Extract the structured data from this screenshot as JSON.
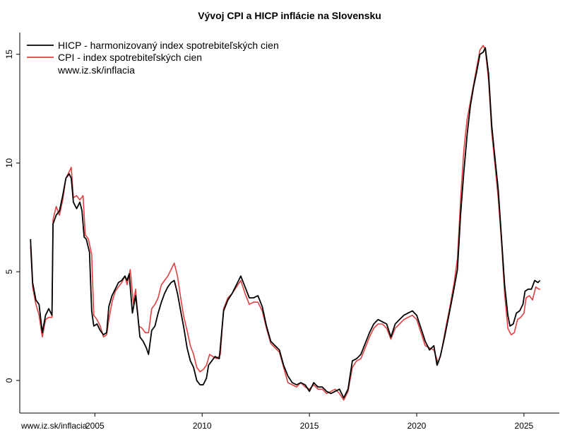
{
  "chart_data": {
    "type": "line",
    "title": "Vývoj CPI a HICP inflácie na Slovensku",
    "xlabel": "",
    "ylabel": "",
    "xlim": [
      2001.5,
      2026.65
    ],
    "ylim": [
      -1.5,
      16.0
    ],
    "x_ticks": [
      2005,
      2010,
      2015,
      2020,
      2025
    ],
    "y_ticks": [
      0,
      5,
      10,
      15
    ],
    "legend_position": "top-left",
    "legend_note": "www.iz.sk/inflacia",
    "watermark": "www.iz.sk/inflacia",
    "series": [
      {
        "name": "HICP - harmonizovaný index spotrebiteľských cien",
        "color": "#000000",
        "points": [
          [
            2002.0,
            6.5
          ],
          [
            2002.1,
            4.5
          ],
          [
            2002.25,
            3.7
          ],
          [
            2002.4,
            3.5
          ],
          [
            2002.55,
            2.2
          ],
          [
            2002.7,
            3.0
          ],
          [
            2002.85,
            3.3
          ],
          [
            2003.0,
            3.0
          ],
          [
            2003.05,
            7.2
          ],
          [
            2003.2,
            7.6
          ],
          [
            2003.35,
            7.8
          ],
          [
            2003.5,
            8.5
          ],
          [
            2003.65,
            9.3
          ],
          [
            2003.8,
            9.5
          ],
          [
            2003.9,
            9.3
          ],
          [
            2004.0,
            8.2
          ],
          [
            2004.15,
            7.9
          ],
          [
            2004.3,
            8.2
          ],
          [
            2004.4,
            7.8
          ],
          [
            2004.5,
            6.6
          ],
          [
            2004.6,
            6.5
          ],
          [
            2004.75,
            5.9
          ],
          [
            2004.85,
            3.2
          ],
          [
            2004.95,
            2.5
          ],
          [
            2005.1,
            2.6
          ],
          [
            2005.25,
            2.3
          ],
          [
            2005.4,
            2.1
          ],
          [
            2005.55,
            2.2
          ],
          [
            2005.65,
            3.4
          ],
          [
            2005.8,
            3.9
          ],
          [
            2005.95,
            4.2
          ],
          [
            2006.1,
            4.5
          ],
          [
            2006.25,
            4.6
          ],
          [
            2006.4,
            4.8
          ],
          [
            2006.5,
            4.6
          ],
          [
            2006.6,
            4.9
          ],
          [
            2006.75,
            3.1
          ],
          [
            2006.9,
            3.9
          ],
          [
            2007.0,
            3.0
          ],
          [
            2007.1,
            2.0
          ],
          [
            2007.25,
            1.8
          ],
          [
            2007.4,
            1.5
          ],
          [
            2007.5,
            1.2
          ],
          [
            2007.65,
            2.3
          ],
          [
            2007.8,
            2.5
          ],
          [
            2007.95,
            3.1
          ],
          [
            2008.1,
            3.6
          ],
          [
            2008.25,
            4.0
          ],
          [
            2008.4,
            4.3
          ],
          [
            2008.55,
            4.5
          ],
          [
            2008.7,
            4.6
          ],
          [
            2008.85,
            4.0
          ],
          [
            2009.0,
            3.2
          ],
          [
            2009.15,
            2.4
          ],
          [
            2009.3,
            1.5
          ],
          [
            2009.45,
            0.9
          ],
          [
            2009.6,
            0.6
          ],
          [
            2009.75,
            0.0
          ],
          [
            2009.9,
            -0.2
          ],
          [
            2010.05,
            -0.2
          ],
          [
            2010.2,
            0.1
          ],
          [
            2010.3,
            0.7
          ],
          [
            2010.45,
            0.9
          ],
          [
            2010.6,
            1.1
          ],
          [
            2010.8,
            1.0
          ],
          [
            2011.0,
            3.2
          ],
          [
            2011.2,
            3.7
          ],
          [
            2011.4,
            4.0
          ],
          [
            2011.6,
            4.4
          ],
          [
            2011.8,
            4.8
          ],
          [
            2012.0,
            4.3
          ],
          [
            2012.2,
            3.8
          ],
          [
            2012.4,
            3.8
          ],
          [
            2012.6,
            3.9
          ],
          [
            2012.8,
            3.4
          ],
          [
            2013.0,
            2.5
          ],
          [
            2013.2,
            1.8
          ],
          [
            2013.4,
            1.6
          ],
          [
            2013.6,
            1.4
          ],
          [
            2013.8,
            0.7
          ],
          [
            2014.0,
            0.2
          ],
          [
            2014.2,
            -0.1
          ],
          [
            2014.4,
            -0.2
          ],
          [
            2014.6,
            -0.1
          ],
          [
            2014.8,
            -0.2
          ],
          [
            2015.0,
            -0.5
          ],
          [
            2015.2,
            -0.1
          ],
          [
            2015.4,
            -0.3
          ],
          [
            2015.6,
            -0.3
          ],
          [
            2015.8,
            -0.5
          ],
          [
            2016.0,
            -0.6
          ],
          [
            2016.2,
            -0.5
          ],
          [
            2016.4,
            -0.4
          ],
          [
            2016.6,
            -0.8
          ],
          [
            2016.8,
            -0.4
          ],
          [
            2017.0,
            0.9
          ],
          [
            2017.2,
            1.0
          ],
          [
            2017.4,
            1.2
          ],
          [
            2017.6,
            1.7
          ],
          [
            2017.8,
            2.2
          ],
          [
            2018.0,
            2.6
          ],
          [
            2018.2,
            2.8
          ],
          [
            2018.4,
            2.7
          ],
          [
            2018.6,
            2.6
          ],
          [
            2018.8,
            2.0
          ],
          [
            2019.0,
            2.6
          ],
          [
            2019.2,
            2.8
          ],
          [
            2019.4,
            3.0
          ],
          [
            2019.6,
            3.1
          ],
          [
            2019.8,
            3.2
          ],
          [
            2020.0,
            3.0
          ],
          [
            2020.2,
            2.4
          ],
          [
            2020.4,
            1.8
          ],
          [
            2020.6,
            1.4
          ],
          [
            2020.8,
            1.6
          ],
          [
            2020.95,
            0.7
          ],
          [
            2021.1,
            1.1
          ],
          [
            2021.3,
            2.0
          ],
          [
            2021.5,
            3.0
          ],
          [
            2021.7,
            4.0
          ],
          [
            2021.9,
            5.1
          ],
          [
            2022.05,
            7.7
          ],
          [
            2022.2,
            9.6
          ],
          [
            2022.35,
            11.3
          ],
          [
            2022.5,
            12.6
          ],
          [
            2022.65,
            13.5
          ],
          [
            2022.8,
            14.2
          ],
          [
            2022.95,
            15.0
          ],
          [
            2023.1,
            15.1
          ],
          [
            2023.2,
            15.3
          ],
          [
            2023.35,
            14.1
          ],
          [
            2023.5,
            11.7
          ],
          [
            2023.65,
            10.2
          ],
          [
            2023.8,
            8.8
          ],
          [
            2023.95,
            6.6
          ],
          [
            2024.1,
            4.4
          ],
          [
            2024.25,
            3.0
          ],
          [
            2024.35,
            2.5
          ],
          [
            2024.5,
            2.6
          ],
          [
            2024.65,
            3.1
          ],
          [
            2024.8,
            3.2
          ],
          [
            2024.95,
            3.5
          ],
          [
            2025.05,
            4.1
          ],
          [
            2025.2,
            4.2
          ],
          [
            2025.35,
            4.2
          ],
          [
            2025.5,
            4.6
          ],
          [
            2025.65,
            4.5
          ],
          [
            2025.75,
            4.6
          ]
        ]
      },
      {
        "name": "CPI - index spotrebiteľských cien",
        "color": "#e04040",
        "points": [
          [
            2002.0,
            6.2
          ],
          [
            2002.1,
            4.3
          ],
          [
            2002.25,
            3.5
          ],
          [
            2002.4,
            3.0
          ],
          [
            2002.55,
            2.0
          ],
          [
            2002.7,
            2.8
          ],
          [
            2002.85,
            2.9
          ],
          [
            2003.0,
            2.9
          ],
          [
            2003.05,
            7.4
          ],
          [
            2003.2,
            8.0
          ],
          [
            2003.35,
            7.6
          ],
          [
            2003.5,
            8.3
          ],
          [
            2003.65,
            9.3
          ],
          [
            2003.8,
            9.6
          ],
          [
            2003.9,
            9.8
          ],
          [
            2004.0,
            8.4
          ],
          [
            2004.15,
            8.5
          ],
          [
            2004.3,
            8.3
          ],
          [
            2004.45,
            8.5
          ],
          [
            2004.55,
            6.7
          ],
          [
            2004.7,
            6.5
          ],
          [
            2004.85,
            5.8
          ],
          [
            2004.95,
            3.0
          ],
          [
            2005.1,
            2.8
          ],
          [
            2005.25,
            2.5
          ],
          [
            2005.4,
            2.0
          ],
          [
            2005.55,
            2.1
          ],
          [
            2005.65,
            2.8
          ],
          [
            2005.8,
            3.6
          ],
          [
            2005.95,
            4.1
          ],
          [
            2006.1,
            4.3
          ],
          [
            2006.25,
            4.5
          ],
          [
            2006.4,
            4.8
          ],
          [
            2006.5,
            4.4
          ],
          [
            2006.65,
            5.1
          ],
          [
            2006.8,
            3.5
          ],
          [
            2006.9,
            4.2
          ],
          [
            2007.05,
            2.5
          ],
          [
            2007.2,
            2.4
          ],
          [
            2007.35,
            2.2
          ],
          [
            2007.5,
            2.2
          ],
          [
            2007.65,
            3.3
          ],
          [
            2007.8,
            3.5
          ],
          [
            2007.95,
            3.8
          ],
          [
            2008.1,
            4.4
          ],
          [
            2008.25,
            4.6
          ],
          [
            2008.4,
            4.8
          ],
          [
            2008.55,
            5.1
          ],
          [
            2008.7,
            5.4
          ],
          [
            2008.85,
            4.8
          ],
          [
            2009.0,
            3.8
          ],
          [
            2009.15,
            2.9
          ],
          [
            2009.3,
            2.3
          ],
          [
            2009.45,
            1.6
          ],
          [
            2009.6,
            1.2
          ],
          [
            2009.75,
            0.6
          ],
          [
            2009.9,
            0.4
          ],
          [
            2010.05,
            0.5
          ],
          [
            2010.2,
            0.7
          ],
          [
            2010.35,
            1.2
          ],
          [
            2010.5,
            1.1
          ],
          [
            2010.7,
            1.0
          ],
          [
            2010.85,
            1.2
          ],
          [
            2011.0,
            3.3
          ],
          [
            2011.2,
            3.8
          ],
          [
            2011.4,
            4.0
          ],
          [
            2011.6,
            4.3
          ],
          [
            2011.8,
            4.6
          ],
          [
            2012.0,
            4.0
          ],
          [
            2012.2,
            3.5
          ],
          [
            2012.4,
            3.6
          ],
          [
            2012.6,
            3.6
          ],
          [
            2012.8,
            3.2
          ],
          [
            2013.0,
            2.4
          ],
          [
            2013.2,
            1.7
          ],
          [
            2013.4,
            1.5
          ],
          [
            2013.6,
            1.3
          ],
          [
            2013.8,
            0.6
          ],
          [
            2014.0,
            -0.1
          ],
          [
            2014.2,
            -0.2
          ],
          [
            2014.4,
            -0.3
          ],
          [
            2014.6,
            -0.1
          ],
          [
            2014.8,
            -0.3
          ],
          [
            2015.0,
            -0.4
          ],
          [
            2015.2,
            -0.2
          ],
          [
            2015.4,
            -0.4
          ],
          [
            2015.6,
            -0.4
          ],
          [
            2015.8,
            -0.6
          ],
          [
            2016.0,
            -0.5
          ],
          [
            2016.2,
            -0.4
          ],
          [
            2016.4,
            -0.6
          ],
          [
            2016.6,
            -0.9
          ],
          [
            2016.8,
            -0.5
          ],
          [
            2017.0,
            0.6
          ],
          [
            2017.2,
            0.9
          ],
          [
            2017.4,
            1.0
          ],
          [
            2017.6,
            1.5
          ],
          [
            2017.8,
            2.0
          ],
          [
            2018.0,
            2.4
          ],
          [
            2018.2,
            2.6
          ],
          [
            2018.4,
            2.6
          ],
          [
            2018.6,
            2.4
          ],
          [
            2018.8,
            1.9
          ],
          [
            2019.0,
            2.4
          ],
          [
            2019.2,
            2.6
          ],
          [
            2019.4,
            2.8
          ],
          [
            2019.6,
            2.9
          ],
          [
            2019.8,
            3.0
          ],
          [
            2020.0,
            2.8
          ],
          [
            2020.2,
            2.2
          ],
          [
            2020.4,
            1.6
          ],
          [
            2020.6,
            1.5
          ],
          [
            2020.8,
            1.4
          ],
          [
            2021.0,
            0.8
          ],
          [
            2021.15,
            1.3
          ],
          [
            2021.35,
            2.4
          ],
          [
            2021.55,
            3.4
          ],
          [
            2021.75,
            4.5
          ],
          [
            2021.9,
            5.6
          ],
          [
            2022.05,
            8.4
          ],
          [
            2022.2,
            10.6
          ],
          [
            2022.35,
            12.0
          ],
          [
            2022.5,
            12.8
          ],
          [
            2022.65,
            13.6
          ],
          [
            2022.8,
            14.4
          ],
          [
            2022.95,
            15.2
          ],
          [
            2023.1,
            15.4
          ],
          [
            2023.2,
            15.2
          ],
          [
            2023.35,
            13.8
          ],
          [
            2023.5,
            11.4
          ],
          [
            2023.65,
            9.9
          ],
          [
            2023.8,
            8.4
          ],
          [
            2023.95,
            6.4
          ],
          [
            2024.1,
            4.0
          ],
          [
            2024.25,
            2.4
          ],
          [
            2024.4,
            2.1
          ],
          [
            2024.55,
            2.2
          ],
          [
            2024.7,
            2.8
          ],
          [
            2024.85,
            2.9
          ],
          [
            2025.0,
            3.1
          ],
          [
            2025.1,
            3.8
          ],
          [
            2025.25,
            3.9
          ],
          [
            2025.4,
            3.7
          ],
          [
            2025.55,
            4.3
          ],
          [
            2025.7,
            4.2
          ],
          [
            2025.75,
            4.2
          ]
        ]
      }
    ]
  }
}
